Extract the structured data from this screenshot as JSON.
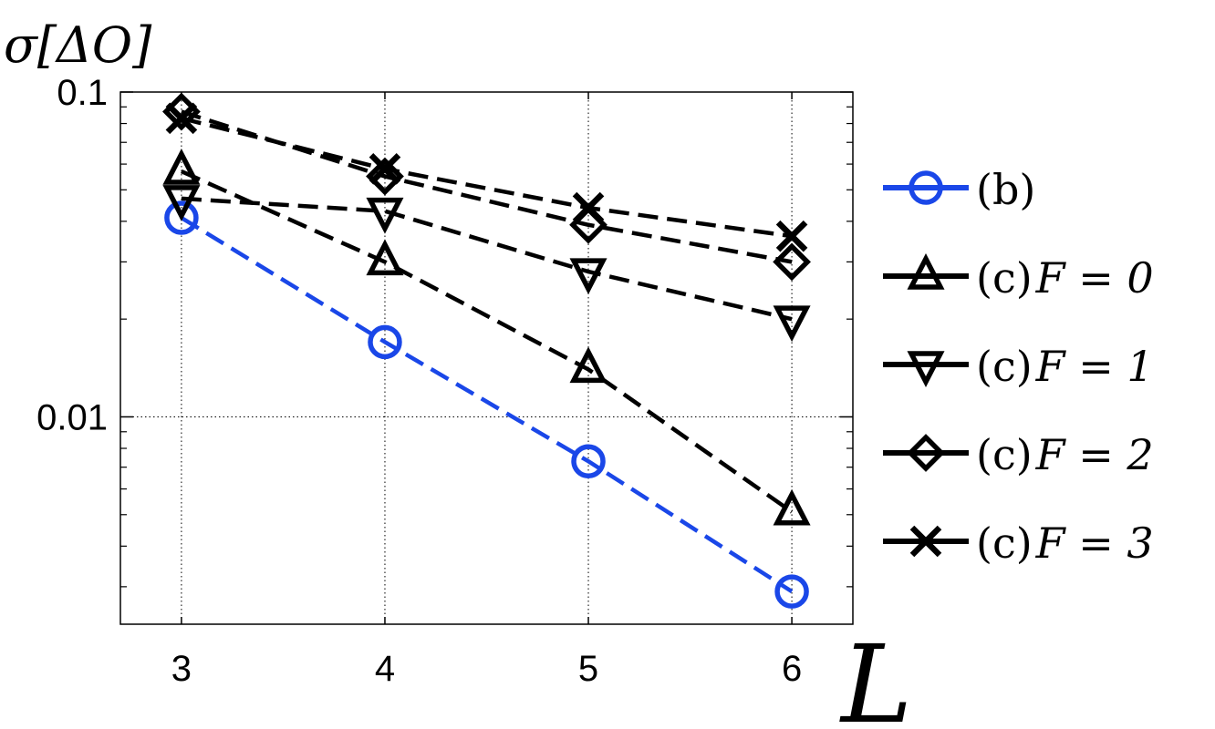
{
  "chart_data": {
    "type": "line",
    "ylabel": "σ[ΔO]",
    "xlabel": "L",
    "yscale": "log",
    "xlim": [
      2.7,
      6.3
    ],
    "ylim": [
      0.0023,
      0.1
    ],
    "grid": true,
    "legend_position": "right",
    "x": [
      3,
      4,
      5,
      6
    ],
    "x_tick_labels": [
      "3",
      "4",
      "5",
      "6"
    ],
    "y_ticks": [
      0.1,
      0.01
    ],
    "y_tick_labels": [
      "0.1",
      "0.01"
    ],
    "series": [
      {
        "name": "(b)",
        "label": {
          "paren": "(b)",
          "rest": ""
        },
        "marker": "circle",
        "color": "#1a47e8",
        "values": [
          0.041,
          0.017,
          0.0073,
          0.0029
        ]
      },
      {
        "name": "(c)F = 0",
        "label": {
          "paren": "(c)",
          "rest": "F = 0"
        },
        "marker": "triangle-up",
        "color": "#000000",
        "values": [
          0.057,
          0.03,
          0.014,
          0.0051
        ]
      },
      {
        "name": "(c)F = 1",
        "label": {
          "paren": "(c)",
          "rest": "F = 1"
        },
        "marker": "triangle-down",
        "color": "#000000",
        "values": [
          0.047,
          0.043,
          0.028,
          0.02
        ]
      },
      {
        "name": "(c)F = 2",
        "label": {
          "paren": "(c)",
          "rest": "F = 2"
        },
        "marker": "diamond",
        "color": "#000000",
        "values": [
          0.087,
          0.055,
          0.039,
          0.03
        ]
      },
      {
        "name": "(c)F = 3",
        "label": {
          "paren": "(c)",
          "rest": "F = 3"
        },
        "marker": "cross",
        "color": "#000000",
        "values": [
          0.083,
          0.058,
          0.044,
          0.036
        ]
      }
    ]
  }
}
